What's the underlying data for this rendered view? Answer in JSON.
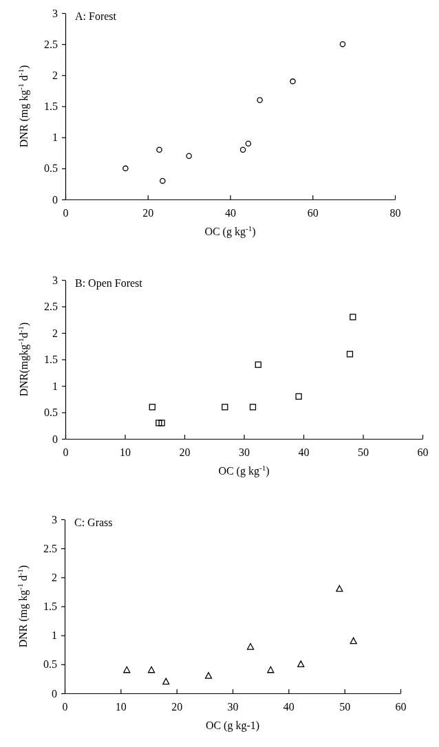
{
  "chart_data": [
    {
      "type": "scatter",
      "title": "A: Forest",
      "xlabel": "OC (g kg$^{-1}$)",
      "ylabel": "DNR (mg kg$^{-1}$ d$^{-1}$)",
      "marker": "circle",
      "xlim": [
        0,
        80
      ],
      "xticks": [
        0,
        20,
        40,
        60,
        80
      ],
      "ylim": [
        0,
        3
      ],
      "yticks": [
        0,
        0.5,
        1,
        1.5,
        2,
        2.5,
        3
      ],
      "series": [
        {
          "color": "#000000",
          "x": [
            14.6,
            22.8,
            23.6,
            30.0,
            43.1,
            44.4,
            47.2,
            55.2,
            67.3
          ],
          "values": [
            0.5,
            0.8,
            0.3,
            0.7,
            0.8,
            0.9,
            1.6,
            1.9,
            2.5
          ]
        }
      ]
    },
    {
      "type": "scatter",
      "title": "B: Open Forest",
      "xlabel": "OC (g kg$^{-1}$)",
      "ylabel": "DNR(mgkg$^{-1}$d$^{-1}$)",
      "marker": "square",
      "xlim": [
        0,
        60
      ],
      "xticks": [
        0,
        10,
        20,
        30,
        40,
        50,
        60
      ],
      "ylim": [
        0,
        3
      ],
      "yticks": [
        0,
        0.5,
        1,
        1.5,
        2,
        2.5,
        3
      ],
      "series": [
        {
          "color": "#000000",
          "x": [
            14.6,
            15.7,
            16.2,
            26.8,
            31.5,
            32.4,
            39.2,
            47.8,
            48.3
          ],
          "values": [
            0.6,
            0.3,
            0.3,
            0.6,
            0.6,
            1.4,
            0.8,
            1.6,
            2.3
          ]
        }
      ]
    },
    {
      "type": "scatter",
      "title": "C: Grass",
      "xlabel": "OC (g kg-1)",
      "ylabel": "DNR (mg kg$^{-1}$ d$^{-1}$)",
      "marker": "triangle",
      "xlim": [
        0,
        60
      ],
      "xticks": [
        0,
        10,
        20,
        30,
        40,
        50,
        60
      ],
      "ylim": [
        0,
        3
      ],
      "yticks": [
        0,
        0.5,
        1,
        1.5,
        2,
        2.5,
        3
      ],
      "series": [
        {
          "color": "#000000",
          "x": [
            11.1,
            15.5,
            18.1,
            25.7,
            33.2,
            36.8,
            42.2,
            49.1,
            51.6
          ],
          "values": [
            0.4,
            0.4,
            0.2,
            0.3,
            0.8,
            0.4,
            0.5,
            1.8,
            0.9
          ]
        }
      ]
    }
  ]
}
